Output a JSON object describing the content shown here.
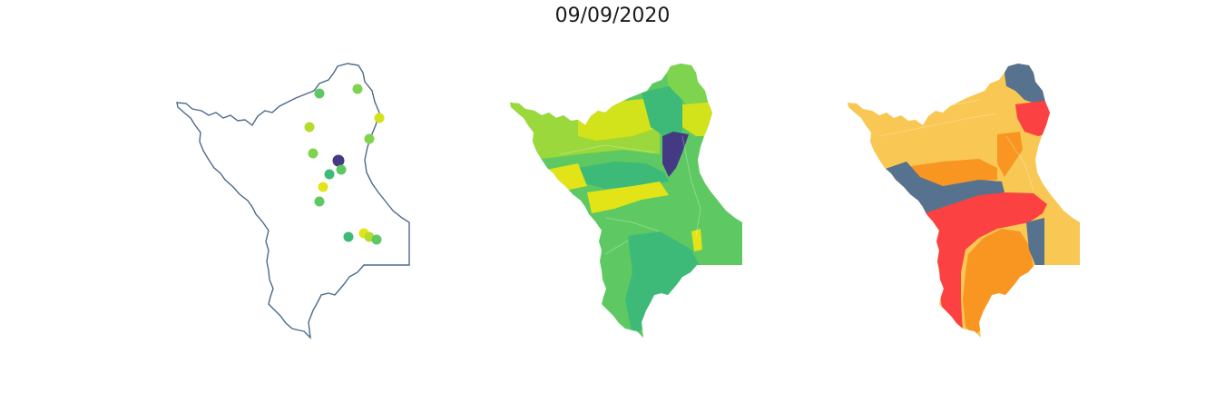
{
  "figure": {
    "title": "09/09/2020"
  },
  "palette": {
    "outline": "#4a6a8a",
    "viridis_dark": "#443983",
    "viridis_teal": "#3dba78",
    "viridis_green": "#5ec962",
    "viridis_lime": "#7ed34f",
    "viridis_yellowgreen": "#b3dc2d",
    "viridis_yellow": "#e2e418",
    "cat_slate": "#56728e",
    "cat_gold": "#f9c754",
    "cat_orange": "#f99622",
    "cat_red": "#fb4141"
  },
  "panels": [
    {
      "name": "point-map",
      "legend": "none"
    },
    {
      "name": "viridis-choropleth",
      "legend": "none"
    },
    {
      "name": "category-choropleth",
      "legend": "none"
    }
  ]
}
